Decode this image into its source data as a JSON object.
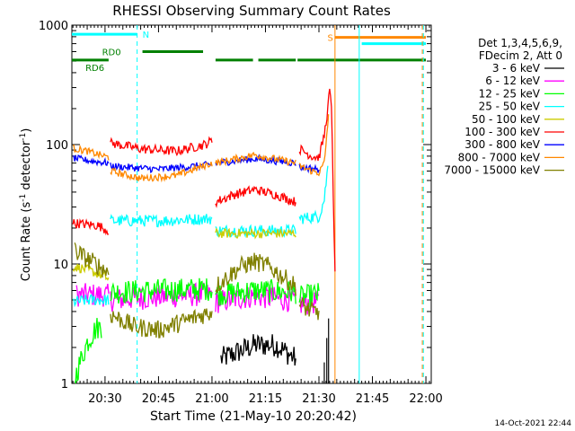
{
  "chart_data": {
    "type": "line",
    "title": "RHESSI Observing Summary Count Rates",
    "xlabel": "Start Time (21-May-10 20:20:42)",
    "ylabel": "Count Rate (s",
    "ylabel_sup": "-1",
    "ylabel_tail": " detector",
    "ylabel_sup2": "-1",
    "ylabel_close": ")",
    "yscale": "log",
    "x_unit": "minutes after 20:00",
    "xlim": [
      20.7,
      121.5
    ],
    "ylim": [
      1,
      1000
    ],
    "x_ticks": [
      {
        "label": "20:30",
        "value": 30
      },
      {
        "label": "20:45",
        "value": 45
      },
      {
        "label": "21:00",
        "value": 60
      },
      {
        "label": "21:15",
        "value": 75
      },
      {
        "label": "21:30",
        "value": 90
      },
      {
        "label": "21:45",
        "value": 105
      },
      {
        "label": "22:00",
        "value": 120
      }
    ],
    "y_ticks": [
      {
        "label": "1",
        "value": 1
      },
      {
        "label": "10",
        "value": 10
      },
      {
        "label": "100",
        "value": 100
      },
      {
        "label": "1000",
        "value": 1000
      }
    ],
    "legend_header": [
      "Det 1,3,4,5,6,9,",
      "FDecim 2, Att 0"
    ],
    "legend_position": "right",
    "series": [
      {
        "name": "3 - 6 keV",
        "color": "#000000",
        "segments": [
          {
            "x": [
              62.5,
              72,
              78,
              83.5
            ],
            "y": [
              1.6,
              2.1,
              2.1,
              1.6
            ]
          }
        ],
        "burst": [
          {
            "x": 91.5,
            "y": 1.5
          },
          {
            "x": 92.2,
            "y": 2.4
          },
          {
            "x": 92.7,
            "y": 3.5
          }
        ]
      },
      {
        "name": "6 - 12 keV",
        "color": "#ff00ff",
        "segments": [
          {
            "x": [
              22,
              26,
              30,
              31
            ],
            "y": [
              5.5,
              5.5,
              5.5,
              5.4
            ]
          },
          {
            "x": [
              31.5,
              45,
              60
            ],
            "y": [
              5.0,
              5.3,
              5.6
            ]
          },
          {
            "x": [
              61,
              72,
              83.5
            ],
            "y": [
              4.8,
              5.4,
              4.9
            ]
          },
          {
            "x": [
              84.5,
              90
            ],
            "y": [
              4.6,
              4.8
            ]
          }
        ]
      },
      {
        "name": "12 - 25 keV",
        "color": "#00ff00",
        "segments": [
          {
            "x": [
              21.5,
              23,
              25,
              27.5,
              29
            ],
            "y": [
              1.1,
              1.5,
              2.2,
              2.9,
              3.0
            ]
          },
          {
            "x": [
              31.5,
              45,
              60
            ],
            "y": [
              5.8,
              6.0,
              6.2
            ]
          },
          {
            "x": [
              61,
              72,
              83.5
            ],
            "y": [
              5.6,
              6.0,
              5.8
            ]
          },
          {
            "x": [
              84.5,
              90
            ],
            "y": [
              5.2,
              5.6
            ]
          }
        ]
      },
      {
        "name": "25 - 50 keV",
        "color": "#00ffff",
        "segments": [
          {
            "x": [
              21,
              26,
              31
            ],
            "y": [
              4.8,
              5.0,
              5.0
            ]
          },
          {
            "x": [
              31.5,
              45,
              60
            ],
            "y": [
              23,
              23,
              24
            ]
          },
          {
            "x": [
              61,
              72,
              83.5
            ],
            "y": [
              19,
              19,
              19
            ]
          },
          {
            "x": [
              84.5,
              90,
              91.5,
              92.5
            ],
            "y": [
              24,
              25,
              35,
              65
            ]
          }
        ]
      },
      {
        "name": "50 - 100 keV",
        "color": "#cccc00",
        "segments": [
          {
            "x": [
              21,
              25,
              30,
              31
            ],
            "y": [
              9.5,
              9.0,
              7.8,
              7.5
            ]
          },
          {
            "x": [
              61,
              72,
              83.5
            ],
            "y": [
              18,
              18,
              18
            ]
          }
        ]
      },
      {
        "name": "100 - 300 keV",
        "color": "#ff0000",
        "segments": [
          {
            "x": [
              21,
              28,
              31
            ],
            "y": [
              22,
              21,
              19
            ]
          },
          {
            "x": [
              31.5,
              40,
              50,
              58,
              60
            ],
            "y": [
              103,
              92,
              88,
              100,
              108
            ]
          },
          {
            "x": [
              61,
              66,
              72,
              78,
              83.5
            ],
            "y": [
              33,
              38,
              42,
              38,
              33
            ]
          },
          {
            "x": [
              84.5,
              88,
              90,
              91.5,
              92.5,
              93,
              93.6,
              94,
              94.5
            ],
            "y": [
              92,
              80,
              78,
              120,
              200,
              290,
              180,
              40,
              8
            ]
          }
        ]
      },
      {
        "name": "300 - 800 keV",
        "color": "#0000ff",
        "segments": [
          {
            "x": [
              21,
              26,
              31
            ],
            "y": [
              77,
              73,
              70
            ]
          },
          {
            "x": [
              31.5,
              45,
              60
            ],
            "y": [
              66,
              62,
              68
            ]
          },
          {
            "x": [
              61,
              72,
              83.5
            ],
            "y": [
              70,
              76,
              70
            ]
          },
          {
            "x": [
              84.5,
              90
            ],
            "y": [
              65,
              62
            ]
          }
        ]
      },
      {
        "name": "800 - 7000 keV",
        "color": "#ff8800",
        "segments": [
          {
            "x": [
              21,
              25,
              31
            ],
            "y": [
              93,
              88,
              78
            ]
          },
          {
            "x": [
              31.5,
              40,
              50,
              60
            ],
            "y": [
              60,
              52,
              55,
              70
            ]
          },
          {
            "x": [
              61,
              72,
              83.5
            ],
            "y": [
              70,
              82,
              70
            ]
          },
          {
            "x": [
              84.5,
              88,
              90,
              91.5,
              92.2,
              92.7
            ],
            "y": [
              66,
              60,
              58,
              70,
              120,
              180
            ]
          }
        ]
      },
      {
        "name": "7000 - 15000 keV",
        "color": "#808000",
        "segments": [
          {
            "x": [
              21.5,
              24,
              27,
              29,
              31
            ],
            "y": [
              13,
              11.5,
              10.2,
              9.3,
              8.5
            ]
          },
          {
            "x": [
              31.5,
              38,
              45,
              52,
              60
            ],
            "y": [
              3.8,
              3.0,
              2.8,
              3.3,
              4.0
            ]
          },
          {
            "x": [
              61,
              68,
              72,
              76,
              83.5
            ],
            "y": [
              6.5,
              9.5,
              10.5,
              9.5,
              6.5
            ]
          },
          {
            "x": [
              84.5,
              88,
              90
            ],
            "y": [
              4.6,
              4.0,
              4.0
            ]
          }
        ]
      }
    ],
    "attenuator_bars": [
      {
        "label": "N",
        "color": "#00ffff",
        "y": 840,
        "segments": [
          [
            20.7,
            39
          ]
        ]
      },
      {
        "label": "RD0",
        "color": "#008000",
        "y": 600,
        "segments": [
          [
            40.5,
            57.5
          ]
        ]
      },
      {
        "label": "RD6",
        "color": "#008000",
        "y": 510,
        "segments": [
          [
            20.7,
            31
          ],
          [
            61,
            71.5
          ],
          [
            73,
            83.5
          ],
          [
            84,
            120
          ]
        ]
      },
      {
        "label": "S",
        "color": "#ff8800",
        "y": 790,
        "segments": [
          [
            94.5,
            120
          ]
        ]
      },
      {
        "label": "",
        "color": "#00ffff",
        "y": 700,
        "segments": [
          [
            102,
            120
          ]
        ]
      }
    ],
    "vertical_markers": [
      {
        "x": 39,
        "color": "#00ffff",
        "style": "dashed"
      },
      {
        "x": 94.5,
        "color": "#ff8800",
        "style": "solid"
      },
      {
        "x": 101.3,
        "color": "#00ffff",
        "style": "solid"
      },
      {
        "x": 119,
        "color": "#ff8800",
        "style": "dashed"
      },
      {
        "x": 119.3,
        "color": "#00ffff",
        "style": "dashed"
      }
    ]
  },
  "footer_timestamp": "14-Oct-2021 22:44"
}
